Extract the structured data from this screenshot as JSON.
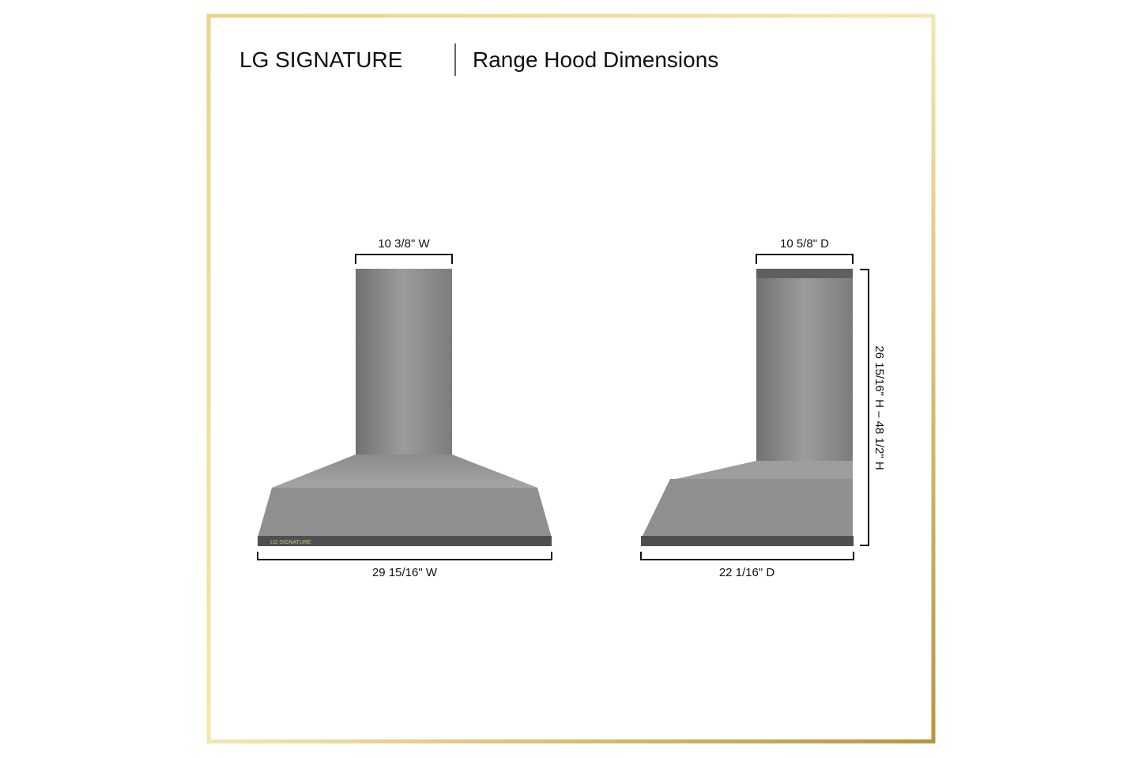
{
  "header": {
    "brand": "LG SIGNATURE",
    "title": "Range Hood Dimensions"
  },
  "front_view": {
    "chimney_width": "10 3/8\" W",
    "hood_width": "29 15/16\" W",
    "hood_badge": "LG SIGNATURE"
  },
  "side_view": {
    "chimney_depth": "10 5/8\" D",
    "hood_depth": "22 1/16\" D",
    "height": "26 15/16\" H – 48 1/2\" H"
  }
}
